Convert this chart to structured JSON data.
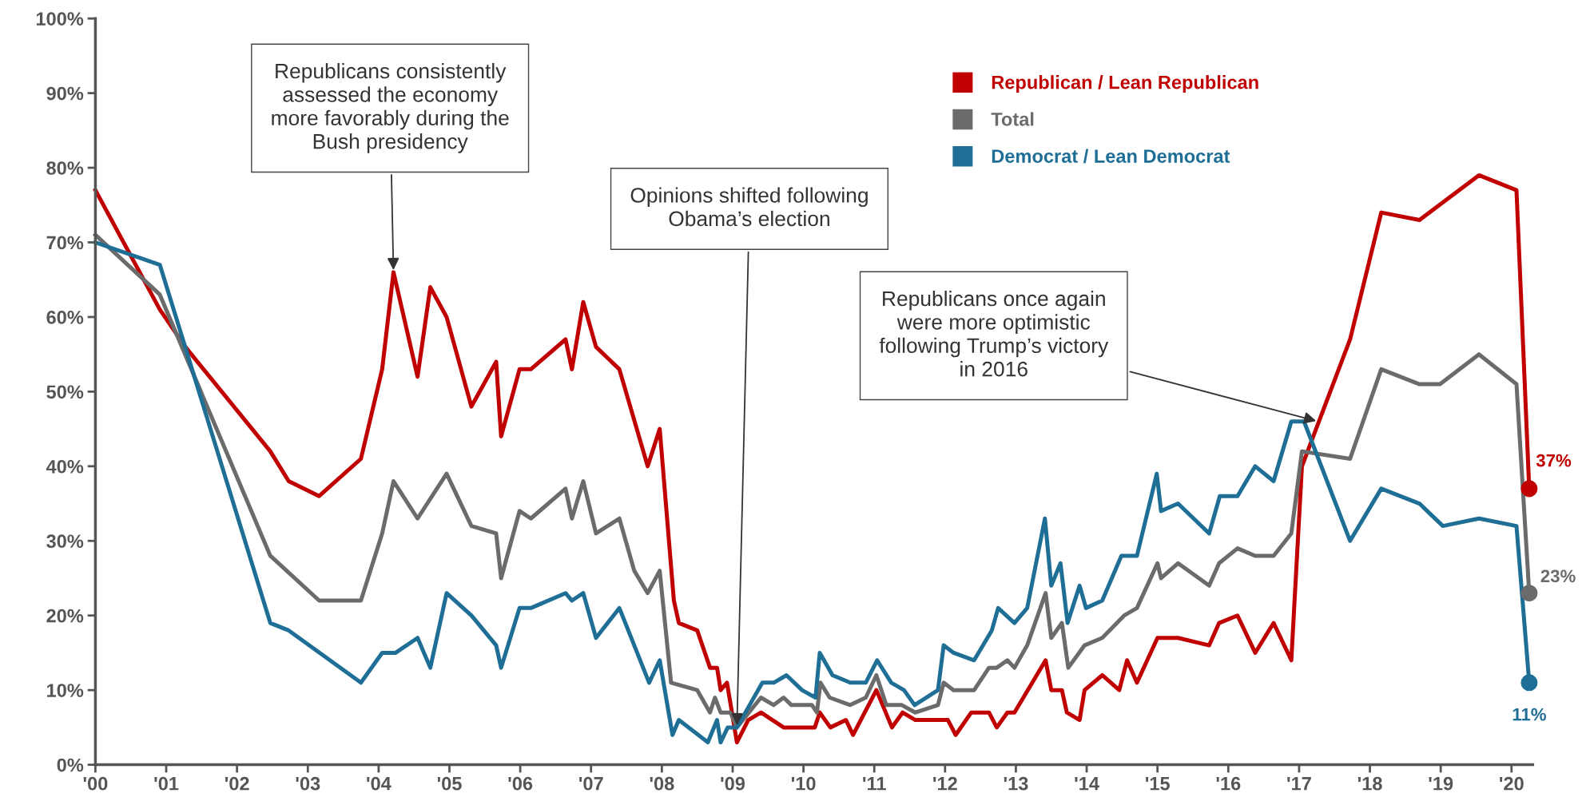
{
  "chart_data": {
    "type": "line",
    "xlim": [
      2000,
      2020.3
    ],
    "ylim": [
      0,
      100
    ],
    "xticks": [
      {
        "value": 2000,
        "label": "'00"
      },
      {
        "value": 2001,
        "label": "'01"
      },
      {
        "value": 2002,
        "label": "'02"
      },
      {
        "value": 2003,
        "label": "'03"
      },
      {
        "value": 2004,
        "label": "'04"
      },
      {
        "value": 2005,
        "label": "'05"
      },
      {
        "value": 2006,
        "label": "'06"
      },
      {
        "value": 2007,
        "label": "'07"
      },
      {
        "value": 2008,
        "label": "'08"
      },
      {
        "value": 2009,
        "label": "'09"
      },
      {
        "value": 2010,
        "label": "'10"
      },
      {
        "value": 2011,
        "label": "'11"
      },
      {
        "value": 2012,
        "label": "'12"
      },
      {
        "value": 2013,
        "label": "'13"
      },
      {
        "value": 2014,
        "label": "'14"
      },
      {
        "value": 2015,
        "label": "'15"
      },
      {
        "value": 2016,
        "label": "'16"
      },
      {
        "value": 2017,
        "label": "'17"
      },
      {
        "value": 2018,
        "label": "'18"
      },
      {
        "value": 2019,
        "label": "'19"
      },
      {
        "value": 2020,
        "label": "'20"
      }
    ],
    "yticks": [
      {
        "value": 0,
        "label": "0%"
      },
      {
        "value": 10,
        "label": "10%"
      },
      {
        "value": 20,
        "label": "20%"
      },
      {
        "value": 30,
        "label": "30%"
      },
      {
        "value": 40,
        "label": "40%"
      },
      {
        "value": 50,
        "label": "50%"
      },
      {
        "value": 60,
        "label": "60%"
      },
      {
        "value": 70,
        "label": "70%"
      },
      {
        "value": 80,
        "label": "80%"
      },
      {
        "value": 90,
        "label": "90%"
      },
      {
        "value": 100,
        "label": "100%"
      }
    ],
    "grid": false,
    "legend": "top right",
    "line_style": "solid",
    "series": [
      {
        "name": "Republican / Lean Republican",
        "color": "#c00000",
        "x": [
          2000,
          2000.91,
          2001.27,
          2002.47,
          2002.73,
          2003.16,
          2003.75,
          2004.05,
          2004.21,
          2004.55,
          2004.73,
          2004.96,
          2005.31,
          2005.66,
          2005.73,
          2005.99,
          2006.15,
          2006.64,
          2006.73,
          2006.89,
          2007.07,
          2007.4,
          2007.8,
          2007.97,
          2008.17,
          2008.24,
          2008.5,
          2008.68,
          2008.78,
          2008.83,
          2008.92,
          2009.06,
          2009.22,
          2009.4,
          2009.72,
          2010.16,
          2010.23,
          2010.38,
          2010.6,
          2010.7,
          2011.03,
          2011.25,
          2011.4,
          2011.58,
          2012.04,
          2012.15,
          2012.37,
          2012.62,
          2012.73,
          2012.88,
          2012.98,
          2013.42,
          2013.5,
          2013.65,
          2013.72,
          2013.9,
          2013.97,
          2014.22,
          2014.46,
          2014.57,
          2014.71,
          2015.0,
          2015.29,
          2015.73,
          2015.87,
          2016.13,
          2016.38,
          2016.64,
          2016.89,
          2017.04,
          2017.72,
          2018.16,
          2018.7,
          2019.54,
          2020.07,
          2020.25
        ],
        "values": [
          77,
          61,
          56,
          42,
          38,
          36,
          41,
          53,
          66,
          52,
          64,
          60,
          48,
          54,
          44,
          53,
          53,
          57,
          53,
          62,
          56,
          53,
          40,
          45,
          22,
          19,
          18,
          13,
          13,
          10,
          11,
          3,
          6,
          7,
          5,
          5,
          7,
          5,
          6,
          4,
          10,
          5,
          7,
          6,
          6,
          4,
          7,
          7,
          5,
          7,
          7,
          14,
          10,
          10,
          7,
          6,
          10,
          12,
          10,
          14,
          11,
          17,
          17,
          16,
          19,
          20,
          15,
          19,
          14,
          40,
          57,
          74,
          73,
          79,
          77,
          37
        ]
      },
      {
        "name": "Total",
        "color": "#6b6b6b",
        "x": [
          2000,
          2000.91,
          2002.47,
          2003.16,
          2003.75,
          2004.05,
          2004.21,
          2004.55,
          2004.96,
          2005.31,
          2005.66,
          2005.73,
          2005.99,
          2006.15,
          2006.64,
          2006.73,
          2006.89,
          2007.07,
          2007.4,
          2007.61,
          2007.8,
          2007.97,
          2008.13,
          2008.5,
          2008.68,
          2008.75,
          2008.83,
          2008.97,
          2009.06,
          2009.4,
          2009.58,
          2009.72,
          2009.83,
          2010.12,
          2010.19,
          2010.24,
          2010.37,
          2010.66,
          2010.88,
          2011.03,
          2011.17,
          2011.39,
          2011.58,
          2011.9,
          2011.98,
          2012.12,
          2012.41,
          2012.62,
          2012.73,
          2012.88,
          2012.98,
          2013.16,
          2013.42,
          2013.5,
          2013.65,
          2013.74,
          2013.97,
          2014.22,
          2014.53,
          2014.71,
          2015.0,
          2015.05,
          2015.29,
          2015.73,
          2015.87,
          2016.13,
          2016.38,
          2016.64,
          2016.89,
          2017.04,
          2017.72,
          2018.16,
          2018.7,
          2018.99,
          2019.54,
          2020.07,
          2020.25
        ],
        "values": [
          71,
          63,
          28,
          22,
          22,
          31,
          38,
          33,
          39,
          32,
          31,
          25,
          34,
          33,
          37,
          33,
          38,
          31,
          33,
          26,
          23,
          26,
          11,
          10,
          7,
          9,
          7,
          7,
          5,
          9,
          8,
          9,
          8,
          8,
          7,
          11,
          9,
          8,
          9,
          12,
          8,
          8,
          7,
          8,
          11,
          10,
          10,
          13,
          13,
          14,
          13,
          16,
          23,
          17,
          19,
          13,
          16,
          17,
          20,
          21,
          27,
          25,
          27,
          24,
          27,
          29,
          28,
          28,
          31,
          42,
          41,
          53,
          51,
          51,
          55,
          51,
          23
        ]
      },
      {
        "name": "Democrat / Lean Democrat",
        "color": "#1f6e96",
        "x": [
          2000,
          2000.91,
          2002.47,
          2002.73,
          2003.75,
          2004.05,
          2004.24,
          2004.55,
          2004.73,
          2004.96,
          2005.31,
          2005.66,
          2005.73,
          2005.99,
          2006.15,
          2006.64,
          2006.73,
          2006.89,
          2007.07,
          2007.4,
          2007.82,
          2007.97,
          2008.15,
          2008.24,
          2008.65,
          2008.78,
          2008.83,
          2008.93,
          2009.06,
          2009.42,
          2009.58,
          2009.76,
          2009.98,
          2010.17,
          2010.23,
          2010.41,
          2010.66,
          2010.88,
          2011.04,
          2011.24,
          2011.42,
          2011.57,
          2011.9,
          2011.98,
          2012.12,
          2012.41,
          2012.66,
          2012.75,
          2012.98,
          2013.16,
          2013.41,
          2013.5,
          2013.63,
          2013.73,
          2013.9,
          2013.99,
          2014.22,
          2014.49,
          2014.71,
          2014.99,
          2015.05,
          2015.29,
          2015.73,
          2015.88,
          2016.13,
          2016.38,
          2016.64,
          2016.89,
          2017.07,
          2017.72,
          2018.16,
          2018.7,
          2019.03,
          2019.54,
          2020.07,
          2020.25
        ],
        "values": [
          70,
          67,
          19,
          18,
          11,
          15,
          15,
          17,
          13,
          23,
          20,
          16,
          13,
          21,
          21,
          23,
          22,
          23,
          17,
          21,
          11,
          14,
          4,
          6,
          3,
          6,
          3,
          5,
          5,
          11,
          11,
          12,
          10,
          9,
          15,
          12,
          11,
          11,
          14,
          11,
          10,
          8,
          10,
          16,
          15,
          14,
          18,
          21,
          19,
          21,
          33,
          24,
          27,
          19,
          24,
          21,
          22,
          28,
          28,
          39,
          34,
          35,
          31,
          36,
          36,
          40,
          38,
          46,
          46,
          30,
          37,
          35,
          32,
          33,
          32,
          11
        ]
      },
      {
        "type": "scatter",
        "marker": "circle",
        "x": [
          2020.25,
          2020.25,
          2020.25
        ],
        "values": [
          37,
          23,
          11
        ],
        "colors": [
          "#c00000",
          "#6b6b6b",
          "#1f6e96"
        ],
        "value_labels": [
          "37%",
          "23%",
          "11%"
        ]
      }
    ],
    "annotations": [
      {
        "text": "Republicans consistently\nassessed the economy\nmore favorably during the\nBush presidency",
        "x": 2004.21,
        "y": 66
      },
      {
        "text": "Opinions shifted following\nObama’s election",
        "x": 2009.06,
        "y": 5
      },
      {
        "text": "Republicans once again\nwere more optimistic\nfollowing Trump’s victory\nin 2016",
        "x": 2017.27,
        "y": 46
      }
    ]
  }
}
